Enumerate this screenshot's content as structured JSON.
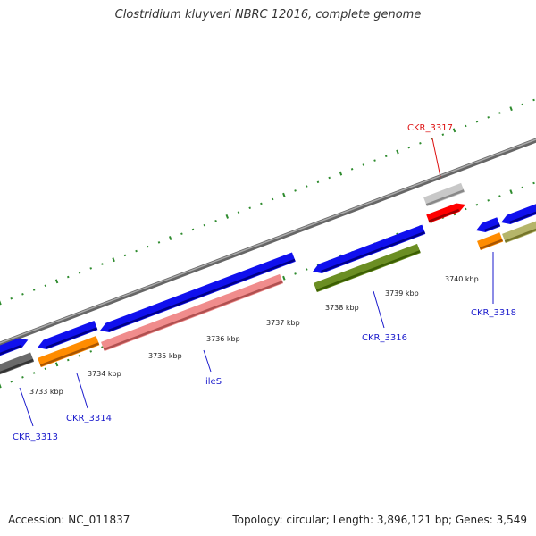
{
  "title": "Clostridium kluyveri NBRC 12016, complete genome",
  "footer": {
    "accession": "Accession: NC_011837",
    "stats": "Topology: circular; Length: 3,896,121 bp; Genes: 3,549"
  },
  "colors": {
    "backbone": "#888888",
    "tick": "#2e8b2e",
    "cds": "#1010ee",
    "label_default": "#1a1acc",
    "label_highlight": "#dd1111"
  },
  "scale_labels": [
    "3733 kbp",
    "3734 kbp",
    "3735 kbp",
    "3736 kbp",
    "3737 kbp",
    "3738 kbp",
    "3739 kbp",
    "3740 kbp"
  ],
  "gene_labels": [
    {
      "text": "CKR_3313",
      "color": "#1a1acc"
    },
    {
      "text": "CKR_3314",
      "color": "#1a1acc"
    },
    {
      "text": "ileS",
      "color": "#1a1acc"
    },
    {
      "text": "CKR_3316",
      "color": "#1a1acc"
    },
    {
      "text": "CKR_3317",
      "color": "#dd1111"
    },
    {
      "text": "CKR_3318",
      "color": "#1a1acc"
    }
  ]
}
